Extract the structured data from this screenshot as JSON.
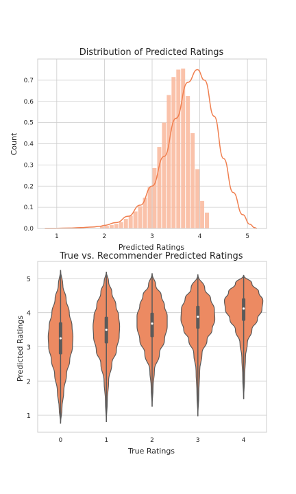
{
  "chart_data": [
    {
      "type": "histogram",
      "title": "Distribution of Predicted Ratings",
      "xlabel": "Predicted Ratings",
      "ylabel": "Count",
      "xlim": [
        0.6,
        5.4
      ],
      "ylim": [
        0,
        0.8
      ],
      "xticks": [
        "1",
        "2",
        "3",
        "4",
        "5"
      ],
      "yticks": [
        "0.0",
        "0.1",
        "0.2",
        "0.3",
        "0.4",
        "0.5",
        "0.6",
        "0.7"
      ],
      "grid": true,
      "bars": {
        "color": "#f9b79b",
        "bins": [
          {
            "x0": 1.9,
            "x1": 2.0,
            "y": 0.01
          },
          {
            "x0": 2.0,
            "x1": 2.1,
            "y": 0.012
          },
          {
            "x0": 2.1,
            "x1": 2.2,
            "y": 0.016
          },
          {
            "x0": 2.2,
            "x1": 2.3,
            "y": 0.022
          },
          {
            "x0": 2.3,
            "x1": 2.4,
            "y": 0.03
          },
          {
            "x0": 2.4,
            "x1": 2.5,
            "y": 0.045
          },
          {
            "x0": 2.5,
            "x1": 2.6,
            "y": 0.06
          },
          {
            "x0": 2.6,
            "x1": 2.7,
            "y": 0.08
          },
          {
            "x0": 2.7,
            "x1": 2.8,
            "y": 0.105
          },
          {
            "x0": 2.8,
            "x1": 2.9,
            "y": 0.145
          },
          {
            "x0": 2.9,
            "x1": 3.0,
            "y": 0.195
          },
          {
            "x0": 3.0,
            "x1": 3.1,
            "y": 0.285
          },
          {
            "x0": 3.1,
            "x1": 3.2,
            "y": 0.385
          },
          {
            "x0": 3.2,
            "x1": 3.3,
            "y": 0.5
          },
          {
            "x0": 3.3,
            "x1": 3.4,
            "y": 0.63
          },
          {
            "x0": 3.4,
            "x1": 3.5,
            "y": 0.715
          },
          {
            "x0": 3.5,
            "x1": 3.6,
            "y": 0.75
          },
          {
            "x0": 3.6,
            "x1": 3.7,
            "y": 0.755
          },
          {
            "x0": 3.7,
            "x1": 3.8,
            "y": 0.625
          },
          {
            "x0": 3.8,
            "x1": 3.9,
            "y": 0.45
          },
          {
            "x0": 3.9,
            "x1": 4.0,
            "y": 0.28
          },
          {
            "x0": 4.0,
            "x1": 4.1,
            "y": 0.13
          },
          {
            "x0": 4.1,
            "x1": 4.2,
            "y": 0.075
          }
        ]
      },
      "kde": {
        "color": "#f07f4f",
        "x": [
          0.75,
          1.0,
          1.25,
          1.5,
          1.75,
          1.9,
          2.0,
          2.25,
          2.5,
          2.75,
          3.0,
          3.25,
          3.5,
          3.75,
          3.95,
          4.1,
          4.3,
          4.5,
          4.7,
          4.9,
          5.05,
          5.15,
          5.2
        ],
        "y": [
          0.0,
          0.001,
          0.002,
          0.004,
          0.007,
          0.01,
          0.015,
          0.028,
          0.058,
          0.11,
          0.2,
          0.34,
          0.52,
          0.69,
          0.75,
          0.7,
          0.53,
          0.33,
          0.17,
          0.065,
          0.02,
          0.004,
          0.0
        ]
      }
    },
    {
      "type": "violin",
      "title": "True vs. Recommender Predicted Ratings",
      "xlabel": "True Ratings",
      "ylabel": "Predicted Ratings",
      "xlim": [
        -0.5,
        4.5
      ],
      "ylim": [
        0.5,
        5.5
      ],
      "categories": [
        "0",
        "1",
        "2",
        "3",
        "4"
      ],
      "yticks": [
        "1",
        "2",
        "3",
        "4",
        "5"
      ],
      "color": "#ec8a62",
      "edge_color": "#5a5a5a",
      "grid": true,
      "violins": [
        {
          "min": 0.75,
          "max": 5.25,
          "q1": 2.78,
          "median": 3.25,
          "q3": 3.72,
          "profile": [
            [
              0.75,
              0.0
            ],
            [
              1.2,
              0.03
            ],
            [
              1.7,
              0.07
            ],
            [
              2.2,
              0.13
            ],
            [
              2.6,
              0.2
            ],
            [
              3.0,
              0.26
            ],
            [
              3.3,
              0.27
            ],
            [
              3.6,
              0.25
            ],
            [
              4.0,
              0.19
            ],
            [
              4.4,
              0.12
            ],
            [
              4.8,
              0.05
            ],
            [
              5.25,
              0.0
            ]
          ]
        },
        {
          "min": 0.8,
          "max": 5.2,
          "q1": 3.1,
          "median": 3.5,
          "q3": 3.88,
          "profile": [
            [
              0.8,
              0.0
            ],
            [
              1.4,
              0.02
            ],
            [
              2.0,
              0.05
            ],
            [
              2.5,
              0.12
            ],
            [
              2.9,
              0.22
            ],
            [
              3.3,
              0.28
            ],
            [
              3.6,
              0.29
            ],
            [
              3.9,
              0.27
            ],
            [
              4.2,
              0.21
            ],
            [
              4.6,
              0.12
            ],
            [
              4.9,
              0.05
            ],
            [
              5.2,
              0.0
            ]
          ]
        },
        {
          "min": 1.25,
          "max": 5.15,
          "q1": 3.28,
          "median": 3.68,
          "q3": 4.0,
          "profile": [
            [
              1.25,
              0.0
            ],
            [
              1.8,
              0.02
            ],
            [
              2.3,
              0.05
            ],
            [
              2.8,
              0.16
            ],
            [
              3.2,
              0.27
            ],
            [
              3.6,
              0.33
            ],
            [
              3.9,
              0.33
            ],
            [
              4.2,
              0.27
            ],
            [
              4.5,
              0.2
            ],
            [
              4.8,
              0.08
            ],
            [
              5.15,
              0.0
            ]
          ]
        },
        {
          "min": 0.97,
          "max": 5.12,
          "q1": 3.53,
          "median": 3.88,
          "q3": 4.2,
          "profile": [
            [
              0.97,
              0.0
            ],
            [
              1.6,
              0.02
            ],
            [
              2.3,
              0.04
            ],
            [
              2.8,
              0.09
            ],
            [
              3.2,
              0.2
            ],
            [
              3.5,
              0.31
            ],
            [
              3.8,
              0.37
            ],
            [
              4.1,
              0.36
            ],
            [
              4.4,
              0.28
            ],
            [
              4.7,
              0.15
            ],
            [
              5.12,
              0.0
            ]
          ]
        },
        {
          "min": 1.47,
          "max": 5.1,
          "q1": 3.76,
          "median": 4.12,
          "q3": 4.42,
          "profile": [
            [
              1.47,
              0.0
            ],
            [
              2.1,
              0.02
            ],
            [
              2.7,
              0.04
            ],
            [
              3.1,
              0.08
            ],
            [
              3.5,
              0.18
            ],
            [
              3.8,
              0.3
            ],
            [
              4.1,
              0.4
            ],
            [
              4.35,
              0.42
            ],
            [
              4.6,
              0.33
            ],
            [
              4.85,
              0.18
            ],
            [
              5.1,
              0.0
            ]
          ]
        }
      ]
    }
  ]
}
